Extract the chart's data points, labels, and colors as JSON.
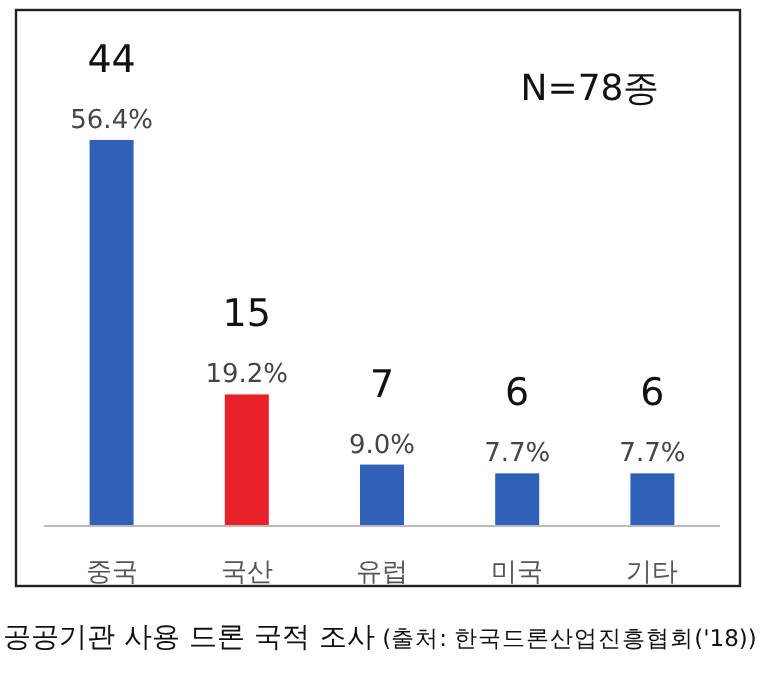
{
  "chart_data": {
    "type": "bar",
    "title": "공공기관 사용 드론 국적 조사",
    "categories": [
      "중국",
      "국산",
      "유럽",
      "미국",
      "기타"
    ],
    "values": [
      44,
      15,
      7,
      6,
      6
    ],
    "colors": [
      "#3060b8",
      "#e8202a",
      "#3060b8",
      "#3060b8",
      "#3060b8"
    ],
    "value_labels": [
      "44",
      "15",
      "7",
      "6",
      "6"
    ],
    "annotations": [
      "N=78종",
      "(출처: 한국드론산업진흥협회('18))",
      {
        "text": "56.4%",
        "x": "중국",
        "y": 44
      },
      {
        "text": "19.2%",
        "x": "국산",
        "y": 15
      },
      {
        "text": "9.0%",
        "x": "유럽",
        "y": 7
      },
      {
        "text": "7.7%",
        "x": "미국",
        "y": 6
      },
      {
        "text": "7.7%",
        "x": "기타",
        "y": 6
      }
    ]
  }
}
